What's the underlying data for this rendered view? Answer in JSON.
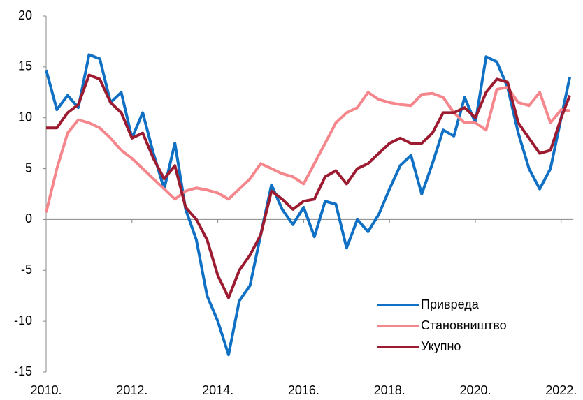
{
  "chart_data": {
    "type": "line",
    "x": [
      2010,
      2010.25,
      2010.5,
      2010.75,
      2011,
      2011.25,
      2011.5,
      2011.75,
      2012,
      2012.25,
      2012.5,
      2012.75,
      2013,
      2013.25,
      2013.5,
      2013.75,
      2014,
      2014.25,
      2014.5,
      2014.75,
      2015,
      2015.25,
      2015.5,
      2015.75,
      2016,
      2016.25,
      2016.5,
      2016.75,
      2017,
      2017.25,
      2017.5,
      2017.75,
      2018,
      2018.25,
      2018.5,
      2018.75,
      2019,
      2019.25,
      2019.5,
      2019.75,
      2020,
      2020.25,
      2020.5,
      2020.75,
      2021,
      2021.25,
      2021.5,
      2021.75,
      2022,
      2022.2
    ],
    "series": [
      {
        "name": "Привреда",
        "color": "#0f70c4",
        "values": [
          14.7,
          10.8,
          12.2,
          11,
          16.2,
          15.8,
          11.5,
          12.5,
          8,
          10.5,
          6.5,
          3,
          7.5,
          1.0,
          -2,
          -7.5,
          -10,
          -13.3,
          -8,
          -6.5,
          -1.5,
          3.4,
          1,
          -0.5,
          1.2,
          -1.7,
          1.8,
          1.5,
          -2.8,
          0,
          -1.2,
          0.5,
          3,
          5.3,
          6.3,
          2.5,
          5.5,
          8.8,
          8.2,
          12,
          9.5,
          16,
          15.5,
          13,
          8.5,
          5,
          3,
          5,
          10,
          14
        ]
      },
      {
        "name": "Становништво",
        "color": "#f5868c",
        "values": [
          0.7,
          5,
          8.5,
          9.8,
          9.5,
          9,
          8,
          6.8,
          6,
          5,
          4,
          3,
          2,
          2.8,
          3.1,
          2.9,
          2.6,
          2,
          3,
          4,
          5.5,
          5,
          4.5,
          4.2,
          3.5,
          5.5,
          7.5,
          9.5,
          10.5,
          11,
          12.5,
          11.8,
          11.5,
          11.3,
          11.2,
          12.3,
          12.4,
          12,
          10.5,
          9.5,
          9.5,
          8.8,
          12.8,
          13,
          11.5,
          11.2,
          12.5,
          9.5,
          10.8,
          10.7
        ]
      },
      {
        "name": "Укупно",
        "color": "#9c1b31",
        "values": [
          9,
          9,
          10.5,
          11.3,
          14.2,
          13.8,
          11.5,
          10.5,
          8,
          8.5,
          6,
          4,
          5.3,
          1.2,
          0,
          -2,
          -5.5,
          -7.7,
          -5,
          -3.5,
          -1.5,
          2.8,
          2,
          1,
          1.8,
          2,
          4.2,
          4.8,
          3.5,
          5,
          5.5,
          6.5,
          7.5,
          8,
          7.5,
          7.5,
          8.5,
          10.5,
          10.5,
          11,
          10,
          12.5,
          13.8,
          13.5,
          9.5,
          8,
          6.5,
          6.8,
          10,
          12.2
        ]
      }
    ],
    "xlim": [
      2010,
      2022.25
    ],
    "xticks": [
      {
        "value": 2010,
        "label": "2010."
      },
      {
        "value": 2012,
        "label": "2012."
      },
      {
        "value": 2014,
        "label": "2014."
      },
      {
        "value": 2016,
        "label": "2016."
      },
      {
        "value": 2018,
        "label": "2018."
      },
      {
        "value": 2020,
        "label": "2020."
      },
      {
        "value": 2022,
        "label": "2022."
      }
    ],
    "ylim": [
      -15,
      20
    ],
    "yticks": [
      -15,
      -10,
      -5,
      0,
      5,
      10,
      15,
      20
    ],
    "grid": false,
    "legend": "lower right"
  }
}
